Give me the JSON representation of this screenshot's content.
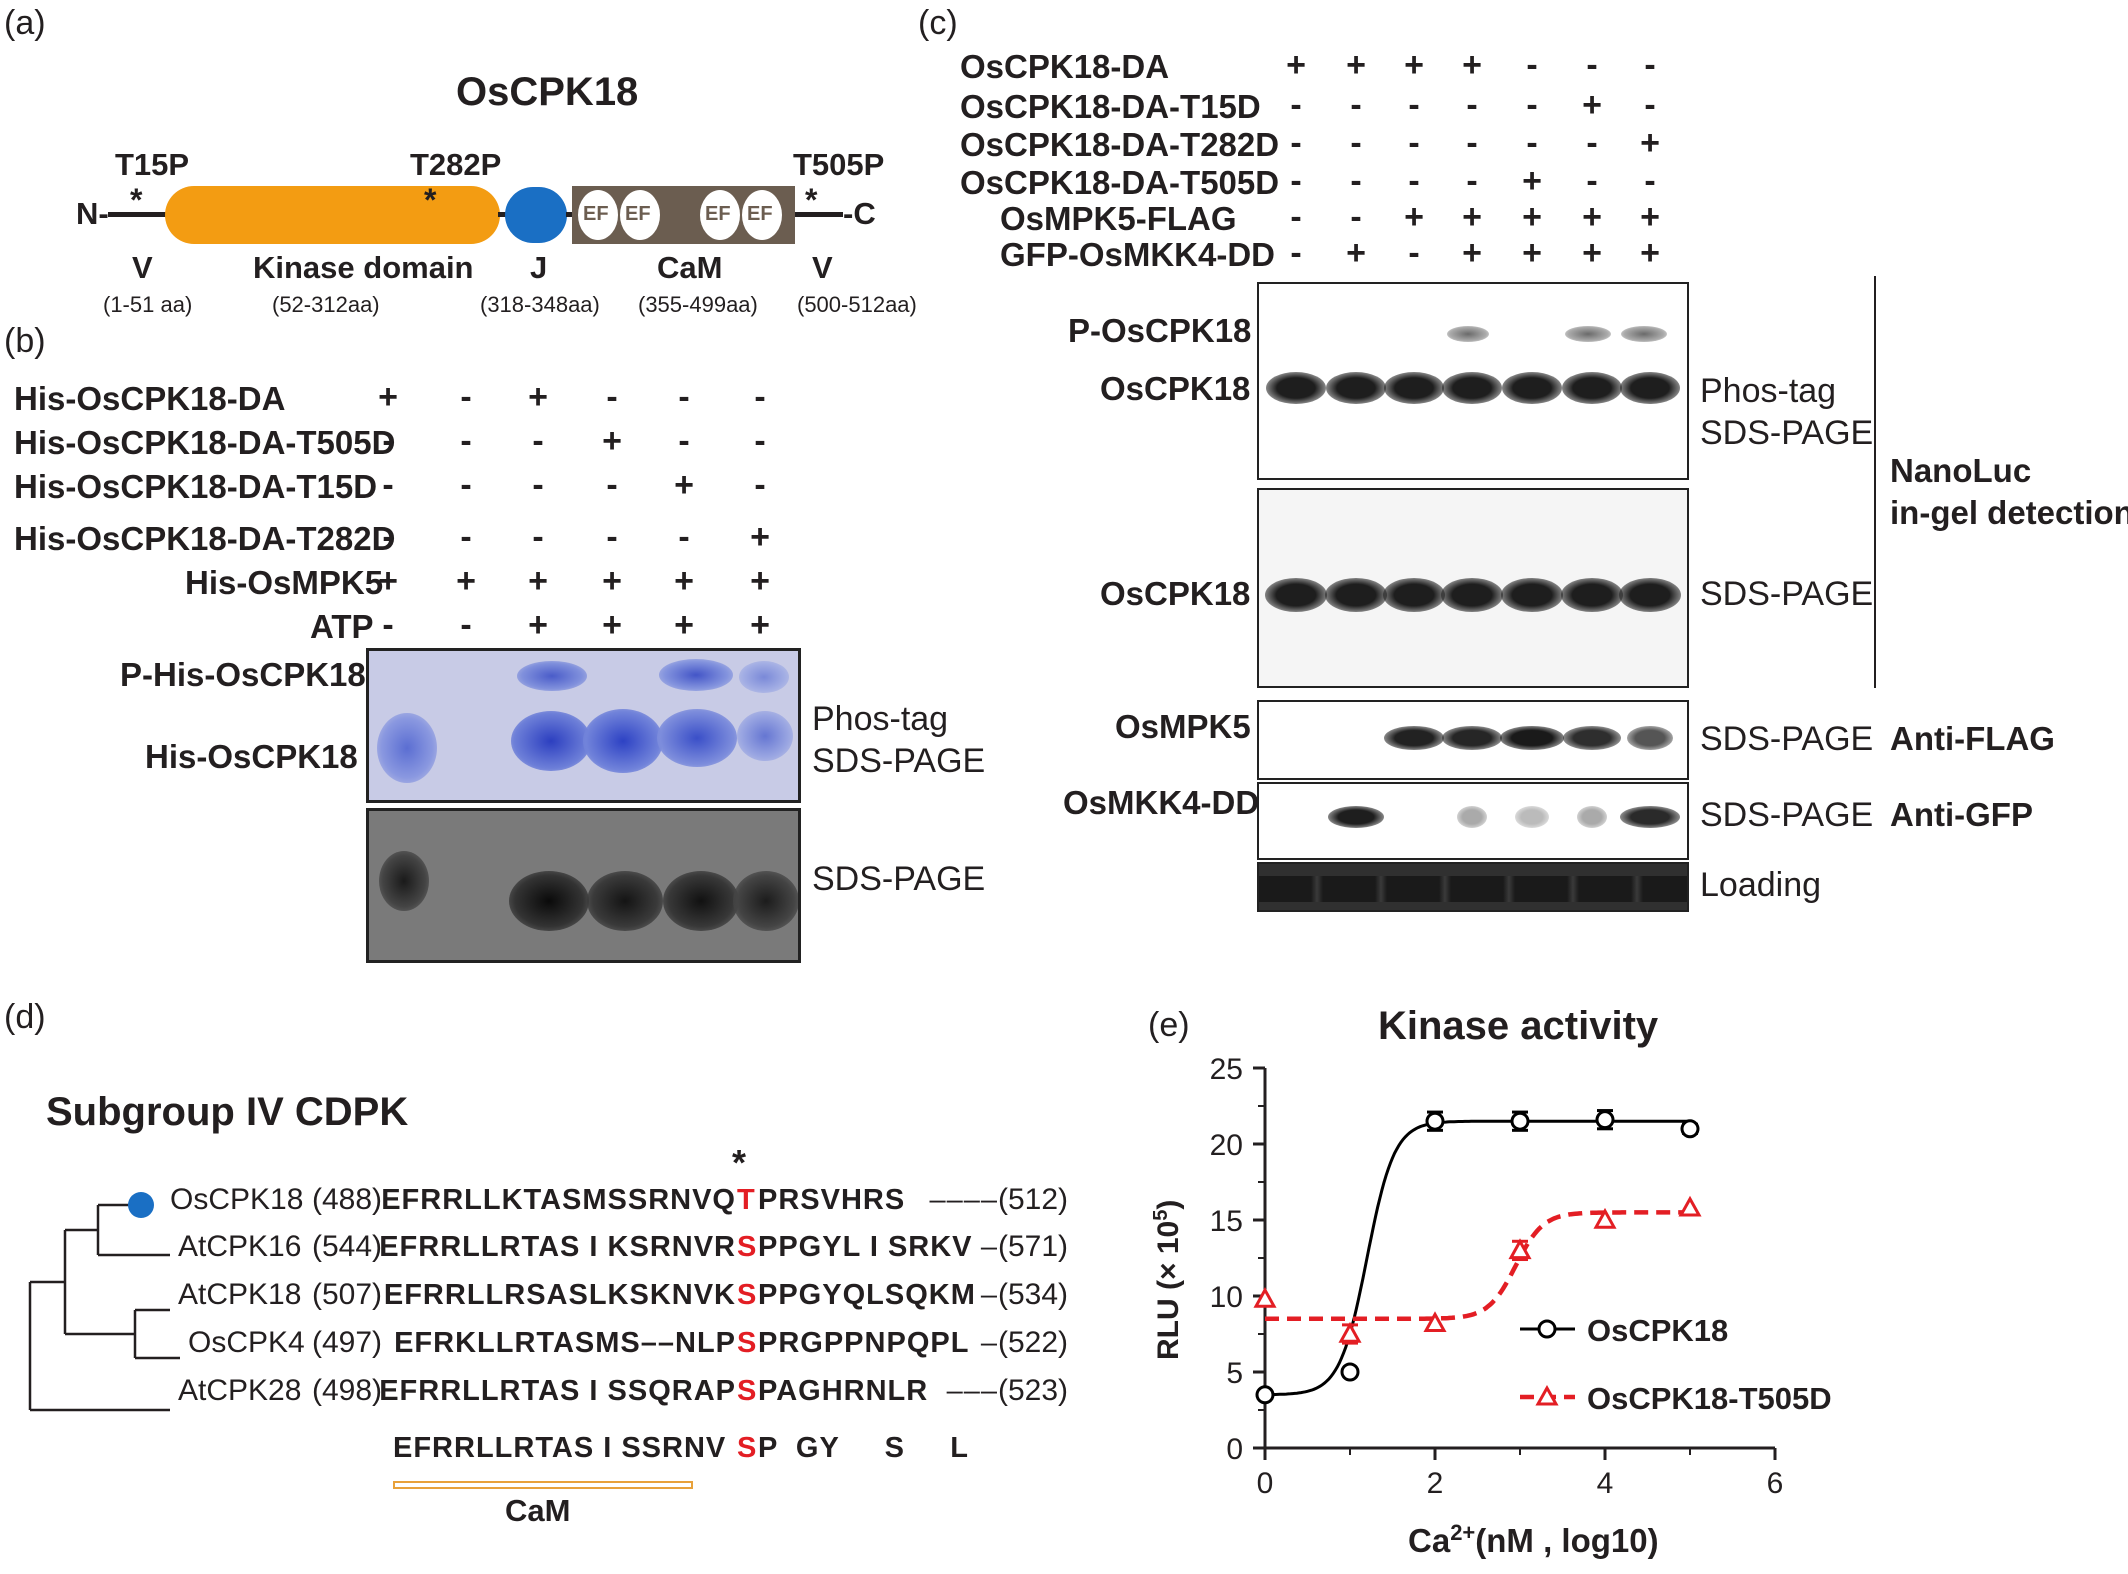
{
  "panel_a": {
    "label": "(a)",
    "title": "OsCPK18",
    "sites": [
      "T15P",
      "T282P",
      "T505P"
    ],
    "n_term": "N-",
    "c_term": "-C",
    "star": "*",
    "ef": "EF",
    "domains": [
      {
        "name": "V",
        "range": "(1-51 aa)"
      },
      {
        "name": "Kinase  domain",
        "range": "(52-312aa)"
      },
      {
        "name": "J",
        "range": "(318-348aa)"
      },
      {
        "name": "CaM",
        "range": "(355-499aa)"
      },
      {
        "name": "V",
        "range": "(500-512aa)"
      }
    ]
  },
  "panel_b": {
    "label": "(b)",
    "rows": [
      {
        "label": "His-OsCPK18-DA",
        "signs": [
          "+",
          "-",
          "+",
          "-",
          "-",
          "-"
        ]
      },
      {
        "label": "His-OsCPK18-DA-T505D",
        "signs": [
          "-",
          "-",
          "-",
          "+",
          "-",
          "-"
        ]
      },
      {
        "label": "His-OsCPK18-DA-T15D",
        "signs": [
          "-",
          "-",
          "-",
          "-",
          "+",
          "-"
        ]
      },
      {
        "label": "His-OsCPK18-DA-T282D",
        "signs": [
          "-",
          "-",
          "-",
          "-",
          "-",
          "+"
        ]
      },
      {
        "label": "His-OsMPK5",
        "signs": [
          "+",
          "+",
          "+",
          "+",
          "+",
          "+"
        ]
      },
      {
        "label": "ATP",
        "signs": [
          "-",
          "-",
          "+",
          "+",
          "+",
          "+"
        ]
      }
    ],
    "band_labels": [
      "P-His-OsCPK18",
      "His-OsCPK18"
    ],
    "gel1_label_1": "Phos-tag",
    "gel1_label_2": "SDS-PAGE",
    "gel2_label": "SDS-PAGE"
  },
  "panel_c": {
    "label": "(c)",
    "rows": [
      {
        "label": "OsCPK18-DA",
        "signs": [
          "+",
          "+",
          "+",
          "+",
          "-",
          "-",
          "-"
        ]
      },
      {
        "label": "OsCPK18-DA-T15D",
        "signs": [
          "-",
          "-",
          "-",
          "-",
          "-",
          "+",
          "-"
        ]
      },
      {
        "label": "OsCPK18-DA-T282D",
        "signs": [
          "-",
          "-",
          "-",
          "-",
          "-",
          "-",
          "+"
        ]
      },
      {
        "label": "OsCPK18-DA-T505D",
        "signs": [
          "-",
          "-",
          "-",
          "-",
          "+",
          "-",
          "-"
        ]
      },
      {
        "label": "OsMPK5-FLAG",
        "signs": [
          "-",
          "-",
          "+",
          "+",
          "+",
          "+",
          "+"
        ]
      },
      {
        "label": "GFP-OsMKK4-DD",
        "signs": [
          "-",
          "+",
          "-",
          "+",
          "+",
          "+",
          "+"
        ]
      }
    ],
    "gel1_bands": [
      "P-OsCPK18",
      "OsCPK18"
    ],
    "gel1_side_1": "Phos-tag",
    "gel1_side_2": "SDS-PAGE",
    "gel2_band": "OsCPK18",
    "gel2_side": "SDS-PAGE",
    "bracket_label_1": "NanoLuc",
    "bracket_label_2": "in-gel detection",
    "gel3_band": "OsMPK5",
    "gel3_side": "SDS-PAGE",
    "gel3_antibody": "Anti-FLAG",
    "gel4_band": "OsMKK4-DD",
    "gel4_side": "SDS-PAGE",
    "gel4_antibody": "Anti-GFP",
    "gel5_side": "Loading"
  },
  "panel_d": {
    "label": "(d)",
    "title": "Subgroup IV CDPK",
    "star": "*",
    "sequences": [
      {
        "name": "OsCPK18",
        "start": "(488)",
        "pre": "EFRRLLKTASMSSRNVQ",
        "site": "T",
        "post": "PRSVHRS",
        "gap": "––––",
        "end": "(512)"
      },
      {
        "name": "AtCPK16",
        "start": "(544)",
        "pre": "EFRRLLRTAS I KSRNVR",
        "site": "S",
        "post": "PPGYL I SRKV",
        "gap": "–",
        "end": "(571)"
      },
      {
        "name": "AtCPK18",
        "start": "(507)",
        "pre": "EFRRLLRSASLKSKNVK",
        "site": "S",
        "post": "PPGYQLSQKM",
        "gap": "–",
        "end": "(534)"
      },
      {
        "name": "OsCPK4",
        "start": "(497)",
        "pre": "EFRKLLRTASMS––NLP",
        "site": "S",
        "post": "PRGPPNPQPL",
        "gap": "–",
        "end": "(522)"
      },
      {
        "name": "AtCPK28",
        "start": "(498)",
        "pre": "EFRRLLRTAS I SSQRAP",
        "site": "S",
        "post": "PAGHRNLR",
        "gap": "–––",
        "end": "(523)"
      }
    ],
    "consensus_pre": "EFRRLLRTAS I SSRNV",
    "consensus_site": "S",
    "consensus_post": "P  GY     S     L",
    "cam_label": "CaM",
    "highlight_color": "#e31e24",
    "marker_color": "#1a6fc4",
    "cam_bar_color": "#e8a13a"
  },
  "panel_e": {
    "label": "(e)",
    "chart_data": {
      "type": "scatter",
      "title": "Kinase activity",
      "xlabel_base": "Ca",
      "xlabel_sup": "2+",
      "xlabel_rest": "(nM , log10)",
      "ylabel_base": "RLU  (× 10",
      "ylabel_sup": "5",
      "ylabel_rest": ")",
      "xlim": [
        0,
        6
      ],
      "ylim": [
        0,
        25
      ],
      "xticks": [
        "0",
        "2",
        "4",
        "6"
      ],
      "yticks": [
        "0",
        "5",
        "10",
        "15",
        "20",
        "25"
      ],
      "legend_position": "lower-right",
      "series": [
        {
          "name": "OsCPK18",
          "color": "#000000",
          "marker": "circle",
          "x": [
            0,
            1,
            2,
            3,
            4,
            5
          ],
          "y": [
            3.5,
            5.0,
            21.5,
            21.5,
            21.6,
            21.0
          ],
          "yerr": [
            0,
            0,
            0.6,
            0.6,
            0.6,
            0.3
          ],
          "fit": {
            "bottom": 3.5,
            "top": 21.5,
            "x50": 1.2,
            "hill": 6
          }
        },
        {
          "name": "OsCPK18-T505D",
          "color": "#e31e24",
          "marker": "triangle",
          "x": [
            0,
            1,
            2,
            3,
            4,
            5
          ],
          "y": [
            9.8,
            7.5,
            8.2,
            13.0,
            15.0,
            15.8
          ],
          "yerr": [
            0,
            0.6,
            0,
            0.6,
            0,
            0
          ],
          "fit": {
            "bottom": 8.5,
            "top": 15.5,
            "x50": 2.95,
            "hill": 6
          }
        }
      ]
    }
  }
}
